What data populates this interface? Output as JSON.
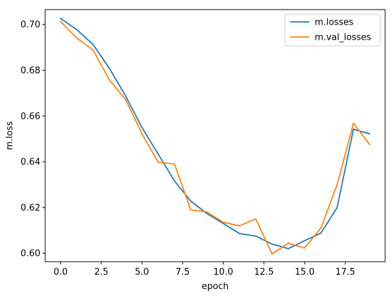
{
  "chart_data": {
    "type": "line",
    "xlabel": "epoch",
    "ylabel": "m.loss",
    "xlim": [
      -0.95,
      19.95
    ],
    "ylim": [
      0.5963,
      0.7065
    ],
    "xticks": [
      0.0,
      2.5,
      5.0,
      7.5,
      10.0,
      12.5,
      15.0,
      17.5
    ],
    "xtick_labels": [
      "0.0",
      "2.5",
      "5.0",
      "7.5",
      "10.0",
      "12.5",
      "15.0",
      "17.5"
    ],
    "yticks": [
      0.6,
      0.62,
      0.64,
      0.66,
      0.68,
      0.7
    ],
    "ytick_labels": [
      "0.60",
      "0.62",
      "0.64",
      "0.66",
      "0.68",
      "0.70"
    ],
    "grid": false,
    "legend_position": "top-right",
    "x": [
      0,
      1,
      2,
      3,
      4,
      5,
      6,
      7,
      8,
      9,
      10,
      11,
      12,
      13,
      14,
      15,
      16,
      17,
      18,
      19
    ],
    "series": [
      {
        "name": "m.losses",
        "color": "#1f77b4",
        "values": [
          0.7026,
          0.6977,
          0.6912,
          0.6808,
          0.6687,
          0.655,
          0.6433,
          0.6316,
          0.6228,
          0.6173,
          0.613,
          0.6086,
          0.6075,
          0.604,
          0.602,
          0.6055,
          0.6088,
          0.62,
          0.6542,
          0.6522
        ]
      },
      {
        "name": "m.val_losses",
        "color": "#ff7f0e",
        "values": [
          0.7013,
          0.694,
          0.6888,
          0.6757,
          0.6672,
          0.6522,
          0.6398,
          0.639,
          0.619,
          0.618,
          0.6135,
          0.612,
          0.615,
          0.5997,
          0.6044,
          0.6023,
          0.611,
          0.63,
          0.6568,
          0.6475
        ]
      }
    ]
  }
}
